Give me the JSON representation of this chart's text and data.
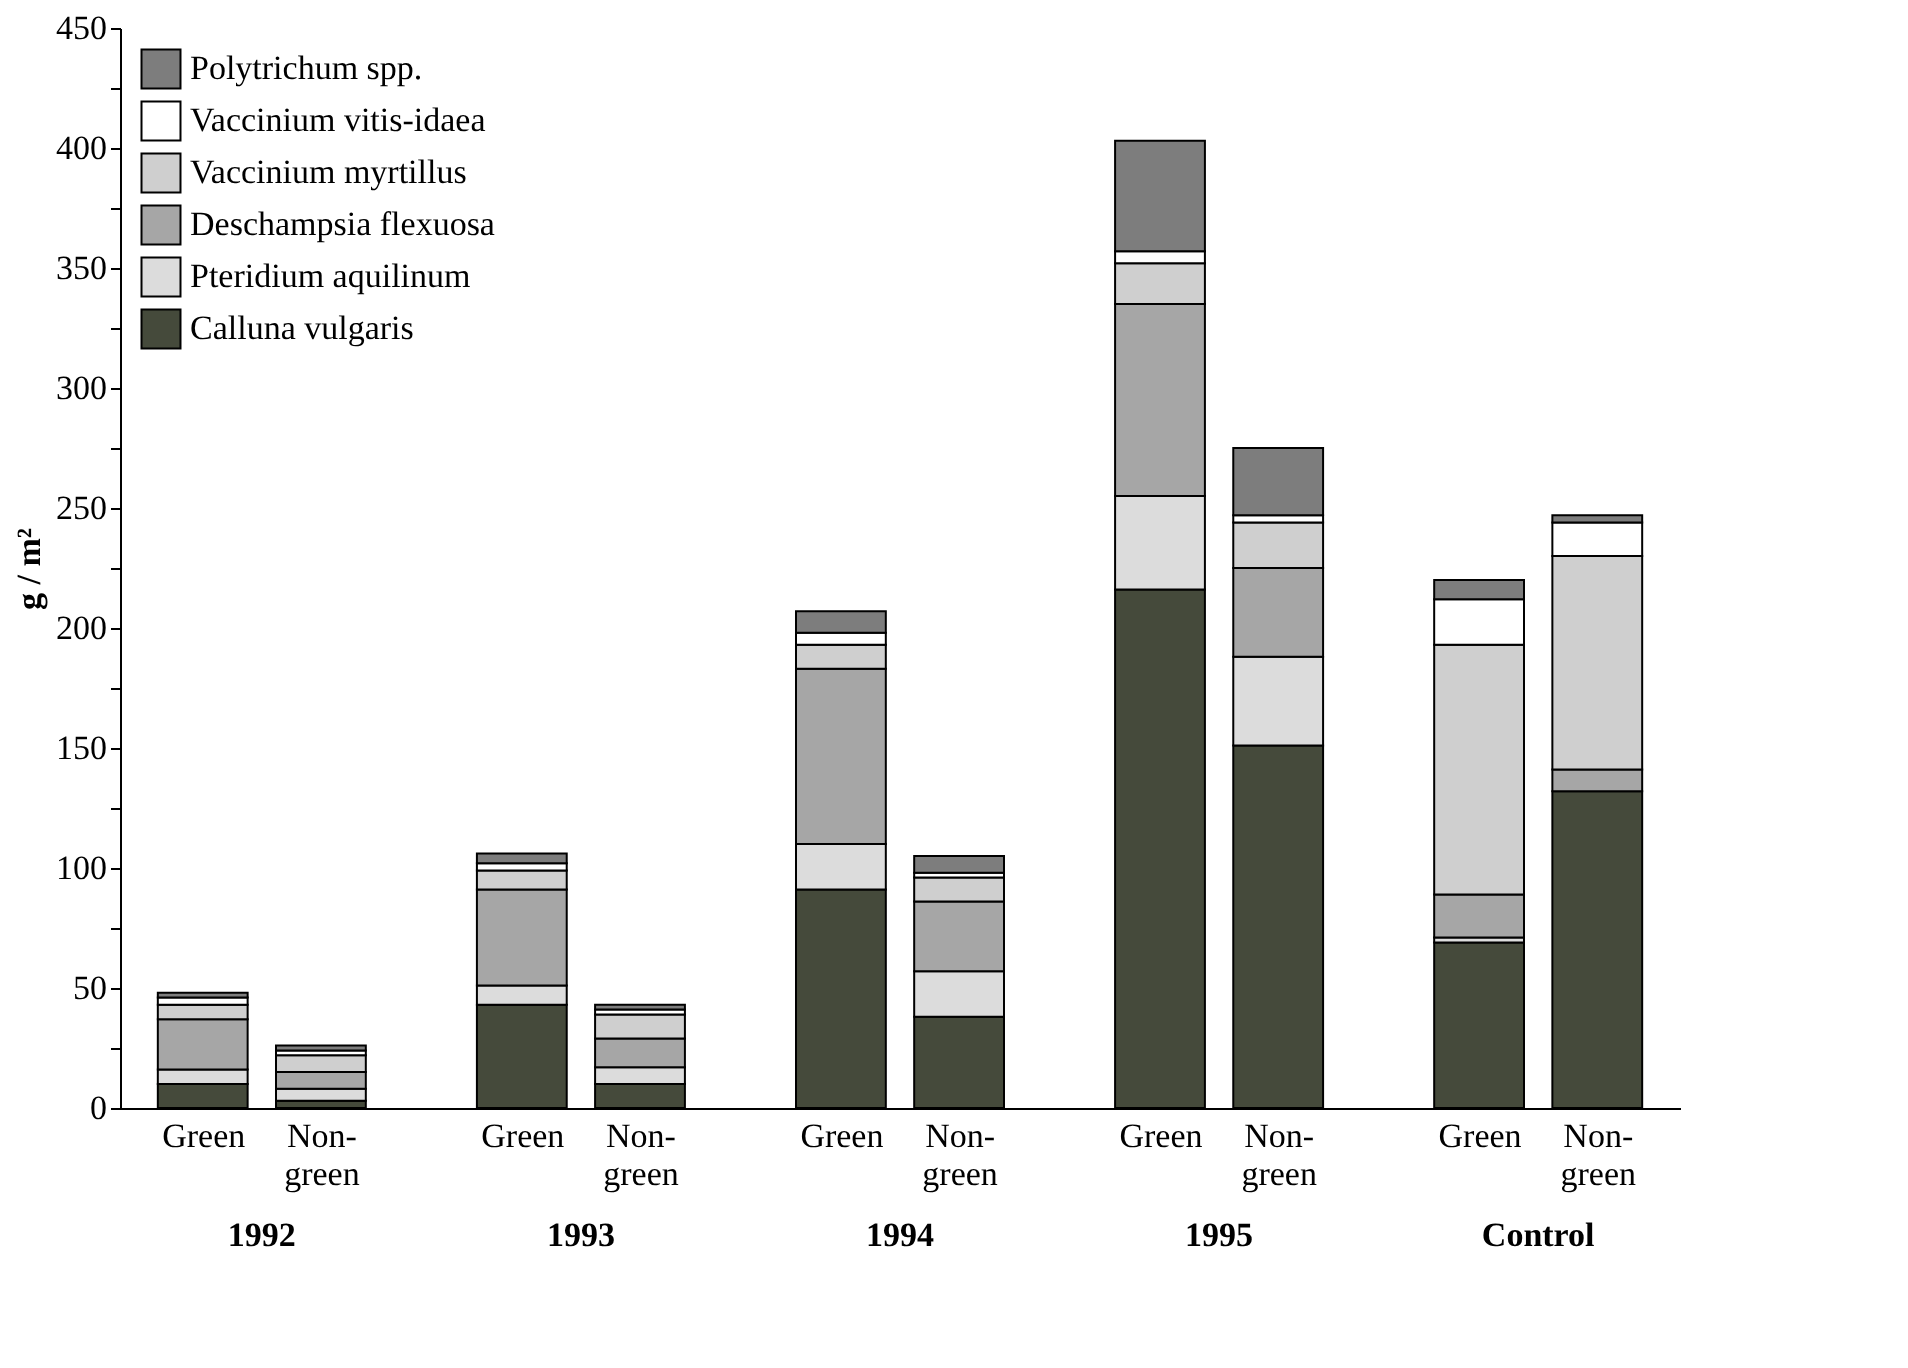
{
  "chart_data": {
    "type": "bar",
    "stacked": true,
    "ylabel": "g / m²",
    "categories": [
      "Green",
      "Non-green",
      "Green",
      "Non-green",
      "Green",
      "Non-green",
      "Green",
      "Non-green",
      "Green",
      "Non-green"
    ],
    "annotations": [
      "1992",
      "1993",
      "1994",
      "1995",
      "Control"
    ],
    "series": [
      {
        "name": "Calluna vulgaris",
        "color": "#454a3b",
        "values": [
          10,
          3,
          43,
          10,
          91,
          38,
          216,
          151,
          69,
          132
        ]
      },
      {
        "name": "Pteridium aquilinum",
        "color": "#dcdcdc",
        "values": [
          6,
          5,
          8,
          7,
          19,
          19,
          39,
          37,
          2,
          null
        ]
      },
      {
        "name": "Deschampsia flexuosa",
        "color": "#a6a6a6",
        "values": [
          21,
          7,
          40,
          12,
          73,
          29,
          80,
          37,
          18,
          9
        ]
      },
      {
        "name": "Vaccinium myrtillus",
        "color": "#cfcfcf",
        "values": [
          6,
          7,
          8,
          10,
          10,
          10,
          17,
          19,
          104,
          89
        ]
      },
      {
        "name": "Vaccinium vitis-idaea",
        "color": "#ffffff",
        "values": [
          3,
          2,
          3,
          2,
          5,
          2,
          5,
          3,
          19,
          14
        ]
      },
      {
        "name": "Polytrichum spp.",
        "color": "#7d7d7d",
        "values": [
          2,
          2,
          4,
          2,
          9,
          7,
          46,
          28,
          8,
          3
        ]
      }
    ],
    "ylim": [
      0,
      450
    ],
    "yticks": [
      0,
      {
        "value": 25,
        "label": null
      },
      50,
      {
        "value": 75,
        "label": null
      },
      100,
      {
        "value": 125,
        "label": null
      },
      150,
      {
        "value": 175,
        "label": null
      },
      200,
      {
        "value": 225,
        "label": null
      },
      250,
      {
        "value": 275,
        "label": null
      },
      300,
      {
        "value": 325,
        "label": null
      },
      350,
      {
        "value": 375,
        "label": null
      },
      400,
      {
        "value": 425,
        "label": null
      },
      450
    ],
    "grid": false,
    "legend": "top left"
  }
}
